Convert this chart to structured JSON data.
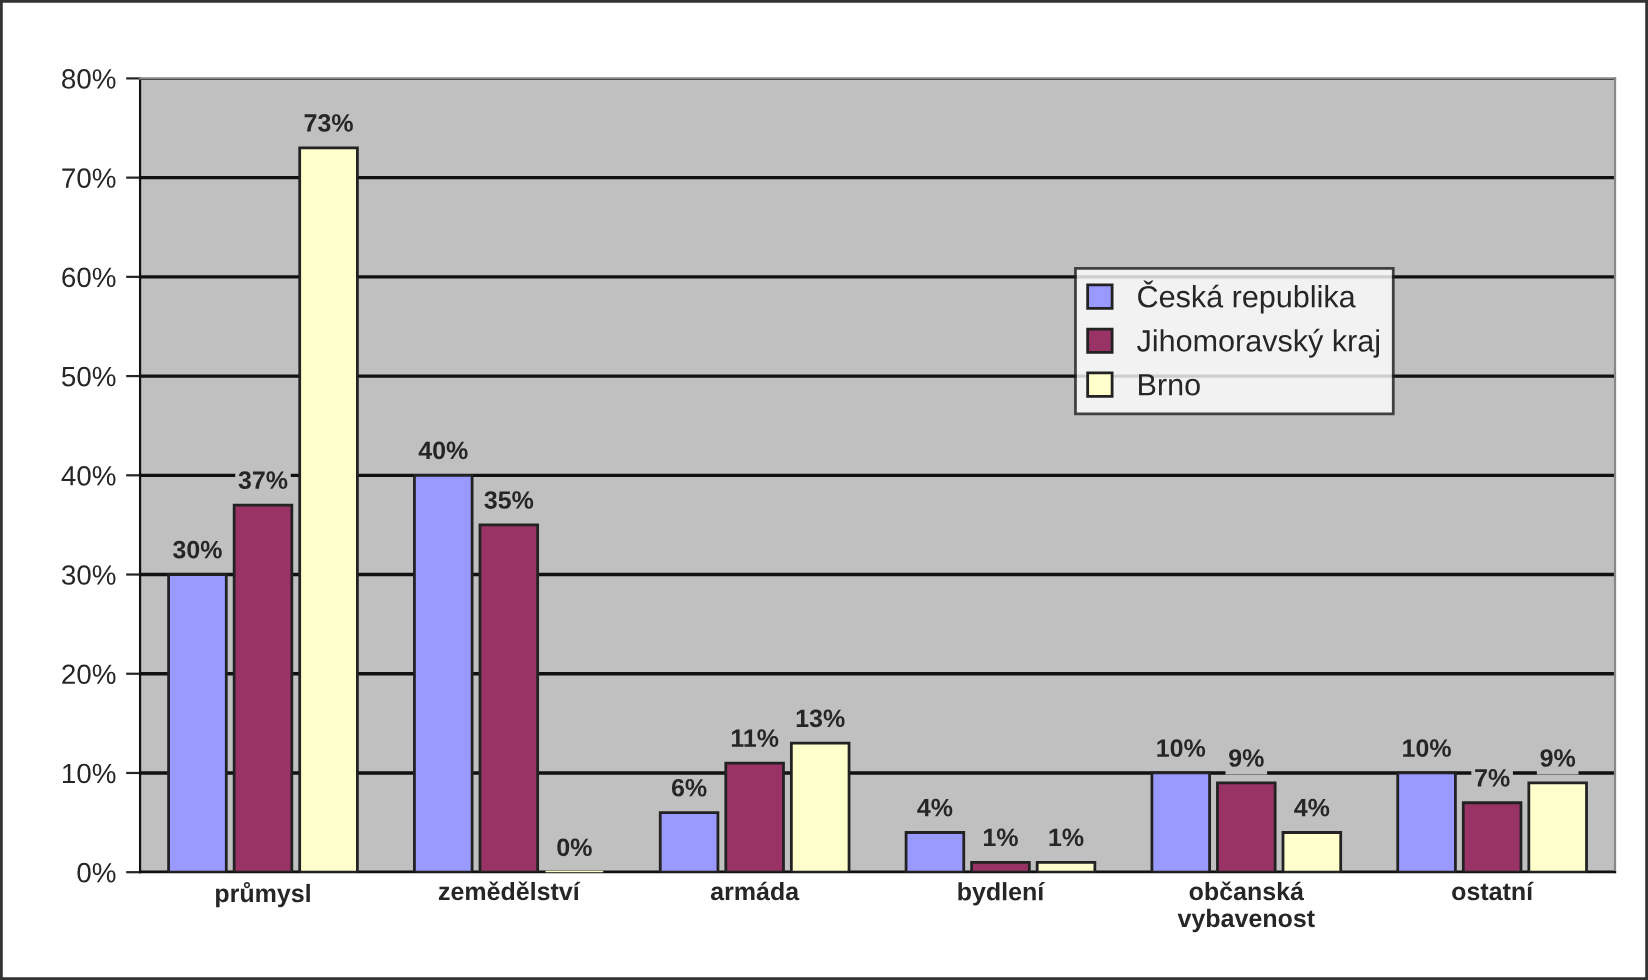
{
  "chart_data": {
    "type": "bar",
    "categories": [
      "průmysl",
      "zemědělství",
      "armáda",
      "bydlení",
      "občanská\nvybavenost",
      "ostatní"
    ],
    "series": [
      {
        "name": "Česká republika",
        "color": "#9999ff",
        "values": [
          30,
          40,
          6,
          4,
          10,
          10
        ],
        "value_labels": [
          "30%",
          "40%",
          "6%",
          "4%",
          "10%",
          "10%"
        ]
      },
      {
        "name": "Jihomoravský kraj",
        "color": "#993366",
        "values": [
          37,
          35,
          11,
          1,
          9,
          7
        ],
        "value_labels": [
          "37%",
          "35%",
          "11%",
          "1%",
          "9%",
          "7%"
        ]
      },
      {
        "name": "Brno",
        "color": "#ffffcc",
        "values": [
          73,
          0,
          13,
          1,
          4,
          9
        ],
        "value_labels": [
          "73%",
          "0%",
          "13%",
          "1%",
          "4%",
          "9%"
        ]
      }
    ],
    "ylim": [
      0,
      80
    ],
    "yticks": [
      {
        "value": 0,
        "label": "0%"
      },
      {
        "value": 10,
        "label": "10%"
      },
      {
        "value": 20,
        "label": "20%"
      },
      {
        "value": 30,
        "label": "30%"
      },
      {
        "value": 40,
        "label": "40%"
      },
      {
        "value": 50,
        "label": "50%"
      },
      {
        "value": 60,
        "label": "60%"
      },
      {
        "value": 70,
        "label": "70%"
      },
      {
        "value": 80,
        "label": "80%"
      }
    ],
    "grid": "y",
    "legend": "top right"
  }
}
